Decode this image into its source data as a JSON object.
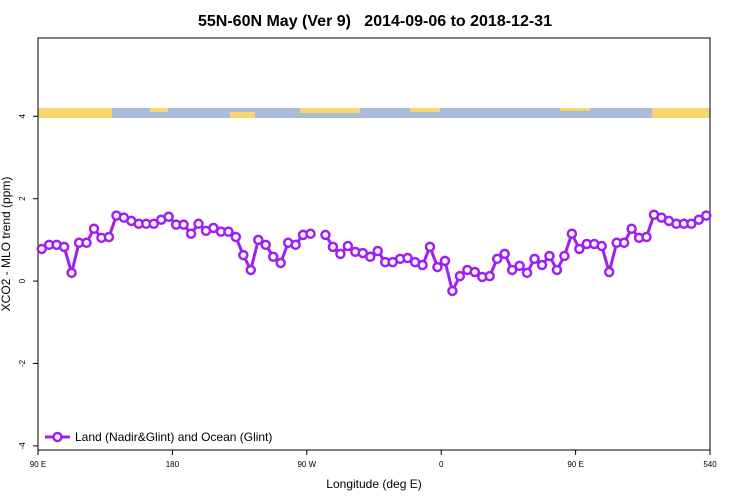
{
  "chart_data": {
    "type": "line",
    "title": "55N-60N May (Ver 9)   2014-09-06 to 2018-12-31",
    "xlabel": "Longitude (deg E)",
    "ylabel": "XCO2 - MLO trend (ppm)",
    "x": [
      92.5,
      97.5,
      102.5,
      107.5,
      112.5,
      117.5,
      122.5,
      127.5,
      132.5,
      137.5,
      142.5,
      147.5,
      152.5,
      157.5,
      162.5,
      167.5,
      172.5,
      177.5,
      182.5,
      187.5,
      192.5,
      197.5,
      202.5,
      207.5,
      212.5,
      217.5,
      222.5,
      227.5,
      232.5,
      237.5,
      242.5,
      247.5,
      252.5,
      257.5,
      262.5,
      267.5,
      272.5,
      277.5,
      282.5,
      287.5,
      292.5,
      297.5,
      302.5,
      307.5,
      312.5,
      317.5,
      322.5,
      327.5,
      332.5,
      337.5,
      342.5,
      347.5,
      352.5,
      357.5,
      362.5,
      367.5,
      372.5,
      377.5,
      382.5,
      387.5,
      392.5,
      397.5,
      402.5,
      407.5,
      412.5,
      417.5,
      422.5,
      427.5,
      432.5,
      437.5,
      442.5,
      447.5,
      452.5,
      457.5,
      462.5,
      467.5,
      472.5,
      477.5,
      482.5,
      487.5,
      492.5,
      497.5,
      502.5,
      507.5,
      512.5,
      517.5,
      522.5,
      527.5,
      532.5,
      537.5
    ],
    "series": [
      {
        "name": "Land (Nadir&Glint) and Ocean (Glint)",
        "color": "#a020f0",
        "values": [
          0.78,
          0.88,
          0.88,
          0.83,
          0.2,
          0.93,
          0.93,
          1.27,
          1.05,
          1.07,
          1.59,
          1.54,
          1.46,
          1.39,
          1.39,
          1.39,
          1.49,
          1.56,
          1.37,
          1.37,
          1.15,
          1.39,
          1.22,
          1.29,
          1.2,
          1.2,
          1.07,
          0.63,
          0.27,
          1.0,
          0.88,
          0.59,
          0.44,
          0.93,
          0.88,
          1.12,
          1.15,
          null,
          1.12,
          0.83,
          0.66,
          0.85,
          0.71,
          0.68,
          0.59,
          0.73,
          0.46,
          0.46,
          0.54,
          0.56,
          0.46,
          0.39,
          0.83,
          0.34,
          0.49,
          -0.24,
          0.12,
          0.27,
          0.22,
          0.1,
          0.12,
          0.54,
          0.66,
          0.27,
          0.37,
          0.2,
          0.54,
          0.39,
          0.61,
          0.27,
          0.61,
          1.15,
          0.78,
          0.9,
          0.9,
          0.85,
          0.22,
          0.93,
          0.93,
          1.27,
          1.05,
          1.07,
          1.61,
          1.54,
          1.46,
          1.39,
          1.39,
          1.39,
          1.49,
          1.59
        ]
      }
    ],
    "xlim": [
      90,
      540
    ],
    "xticks": [
      {
        "value": 90,
        "label": "90 E"
      },
      180,
      {
        "value": 270,
        "label": "90 W"
      },
      {
        "value": 360,
        "label": "0"
      },
      {
        "value": 450,
        "label": "90 E"
      },
      540
    ],
    "ylim": [
      -4.1,
      5.9
    ],
    "yticks": [
      4,
      2,
      0,
      -2,
      -4
    ],
    "legend": "bottom-left"
  }
}
